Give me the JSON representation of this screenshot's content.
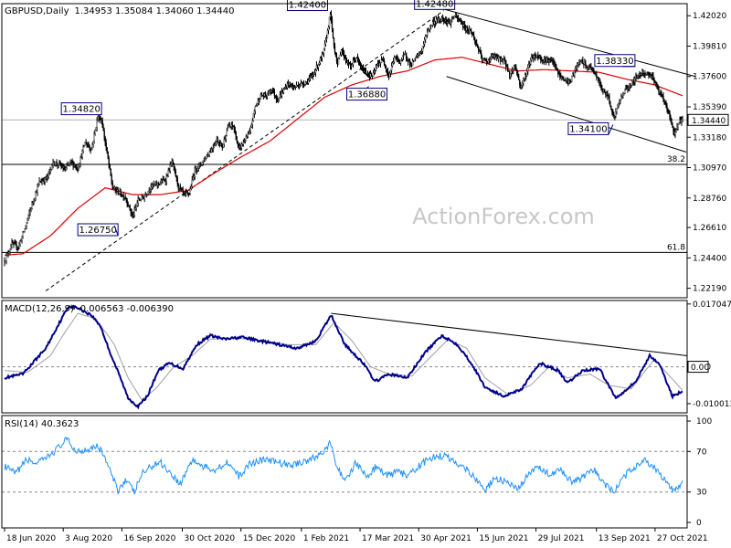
{
  "chart_data": [
    {
      "type": "candlestick",
      "symbol_header": "GBPUSD,Daily",
      "ohlc_header": "1.34953 1.35084 1.34060 1.34440",
      "watermark": "ActionForex.com",
      "ylim": [
        1.215,
        1.429
      ],
      "y_ticks": [
        "1.42020",
        "1.39810",
        "1.37600",
        "1.35390",
        "1.33180",
        "1.30970",
        "1.28760",
        "1.26610",
        "1.24400",
        "1.22190"
      ],
      "current_price": "1.34440",
      "x_ticks": [
        "18 Jun 2020",
        "3 Aug 2020",
        "16 Sep 2020",
        "30 Oct 2020",
        "15 Dec 2020",
        "1 Feb 2021",
        "17 Mar 2021",
        "30 Apr 2021",
        "15 Jun 2021",
        "29 Jul 2021",
        "13 Sep 2021",
        "27 Oct 2021"
      ],
      "price_labels": [
        "1.42400",
        "1.42480",
        "1.34820",
        "1.36880",
        "1.38330",
        "1.34100",
        "1.26750"
      ],
      "fib_labels": [
        "38.2",
        "61.8"
      ],
      "fib_levels": [
        1.312,
        1.248
      ],
      "close_anchors": [
        [
          0,
          1.242
        ],
        [
          8,
          1.254
        ],
        [
          15,
          1.252
        ],
        [
          22,
          1.265
        ],
        [
          30,
          1.283
        ],
        [
          38,
          1.299
        ],
        [
          46,
          1.302
        ],
        [
          53,
          1.313
        ],
        [
          60,
          1.312
        ],
        [
          66,
          1.308
        ],
        [
          72,
          1.314
        ],
        [
          80,
          1.309
        ],
        [
          88,
          1.328
        ],
        [
          95,
          1.323
        ],
        [
          102,
          1.347
        ],
        [
          106,
          1.344
        ],
        [
          112,
          1.32
        ],
        [
          118,
          1.295
        ],
        [
          124,
          1.292
        ],
        [
          132,
          1.288
        ],
        [
          140,
          1.274
        ],
        [
          146,
          1.286
        ],
        [
          152,
          1.288
        ],
        [
          160,
          1.296
        ],
        [
          168,
          1.298
        ],
        [
          176,
          1.301
        ],
        [
          183,
          1.314
        ],
        [
          190,
          1.296
        ],
        [
          196,
          1.29
        ],
        [
          202,
          1.291
        ],
        [
          208,
          1.308
        ],
        [
          214,
          1.312
        ],
        [
          220,
          1.317
        ],
        [
          226,
          1.323
        ],
        [
          232,
          1.33
        ],
        [
          238,
          1.325
        ],
        [
          244,
          1.339
        ],
        [
          250,
          1.34
        ],
        [
          256,
          1.323
        ],
        [
          262,
          1.329
        ],
        [
          268,
          1.335
        ],
        [
          274,
          1.354
        ],
        [
          280,
          1.362
        ],
        [
          286,
          1.362
        ],
        [
          292,
          1.367
        ],
        [
          298,
          1.359
        ],
        [
          304,
          1.365
        ],
        [
          310,
          1.371
        ],
        [
          316,
          1.368
        ],
        [
          322,
          1.37
        ],
        [
          330,
          1.372
        ],
        [
          336,
          1.376
        ],
        [
          342,
          1.384
        ],
        [
          348,
          1.392
        ],
        [
          352,
          1.405
        ],
        [
          356,
          1.422
        ],
        [
          360,
          1.398
        ],
        [
          364,
          1.385
        ],
        [
          368,
          1.396
        ],
        [
          373,
          1.388
        ],
        [
          378,
          1.383
        ],
        [
          384,
          1.39
        ],
        [
          390,
          1.382
        ],
        [
          396,
          1.378
        ],
        [
          402,
          1.376
        ],
        [
          408,
          1.385
        ],
        [
          414,
          1.388
        ],
        [
          420,
          1.376
        ],
        [
          426,
          1.39
        ],
        [
          432,
          1.387
        ],
        [
          438,
          1.392
        ],
        [
          444,
          1.384
        ],
        [
          450,
          1.39
        ],
        [
          456,
          1.395
        ],
        [
          462,
          1.409
        ],
        [
          468,
          1.415
        ],
        [
          474,
          1.417
        ],
        [
          480,
          1.418
        ],
        [
          486,
          1.415
        ],
        [
          492,
          1.42
        ],
        [
          498,
          1.416
        ],
        [
          504,
          1.411
        ],
        [
          510,
          1.409
        ],
        [
          516,
          1.399
        ],
        [
          522,
          1.388
        ],
        [
          528,
          1.387
        ],
        [
          534,
          1.391
        ],
        [
          540,
          1.389
        ],
        [
          546,
          1.388
        ],
        [
          552,
          1.377
        ],
        [
          558,
          1.384
        ],
        [
          564,
          1.368
        ],
        [
          570,
          1.378
        ],
        [
          576,
          1.39
        ],
        [
          582,
          1.391
        ],
        [
          588,
          1.388
        ],
        [
          594,
          1.388
        ],
        [
          600,
          1.386
        ],
        [
          606,
          1.377
        ],
        [
          612,
          1.373
        ],
        [
          618,
          1.372
        ],
        [
          624,
          1.381
        ],
        [
          630,
          1.388
        ],
        [
          636,
          1.383
        ],
        [
          642,
          1.382
        ],
        [
          648,
          1.374
        ],
        [
          654,
          1.366
        ],
        [
          660,
          1.361
        ],
        [
          666,
          1.346
        ],
        [
          672,
          1.358
        ],
        [
          678,
          1.366
        ],
        [
          684,
          1.37
        ],
        [
          690,
          1.375
        ],
        [
          696,
          1.379
        ],
        [
          702,
          1.378
        ],
        [
          708,
          1.376
        ],
        [
          714,
          1.367
        ],
        [
          720,
          1.359
        ],
        [
          726,
          1.349
        ],
        [
          732,
          1.334
        ],
        [
          736,
          1.342
        ],
        [
          741,
          1.3444
        ]
      ],
      "ma_anchors": [
        [
          0,
          1.246
        ],
        [
          20,
          1.247
        ],
        [
          50,
          1.26
        ],
        [
          80,
          1.28
        ],
        [
          110,
          1.295
        ],
        [
          140,
          1.29
        ],
        [
          170,
          1.29
        ],
        [
          200,
          1.293
        ],
        [
          230,
          1.306
        ],
        [
          260,
          1.318
        ],
        [
          290,
          1.329
        ],
        [
          320,
          1.345
        ],
        [
          350,
          1.361
        ],
        [
          380,
          1.37
        ],
        [
          410,
          1.376
        ],
        [
          440,
          1.38
        ],
        [
          470,
          1.388
        ],
        [
          500,
          1.39
        ],
        [
          530,
          1.385
        ],
        [
          560,
          1.38
        ],
        [
          590,
          1.381
        ],
        [
          620,
          1.38
        ],
        [
          650,
          1.379
        ],
        [
          680,
          1.374
        ],
        [
          710,
          1.37
        ],
        [
          741,
          1.362
        ]
      ],
      "trend_lines": [
        {
          "from": [
            480,
            1.425
          ],
          "to": [
            755,
            1.376
          ]
        },
        {
          "from": [
            483,
            1.376
          ],
          "to": [
            745,
            1.321
          ]
        },
        {
          "from": [
            45,
            1.22
          ],
          "to": [
            480,
            1.424
          ]
        }
      ],
      "series": [
        {
          "values": [
            1.424,
            1.4248,
            1.3482,
            1.3688,
            1.3833,
            1.341,
            1.2675
          ]
        }
      ]
    },
    {
      "type": "line",
      "title": "MACD(12,26,9) -0.006563 -0.006390",
      "ylim": [
        -0.0125,
        0.018
      ],
      "y_ticks": [
        "0.017047",
        "0.00",
        "-0.010013"
      ],
      "zero_label": "0.00",
      "macd_anchors": [
        [
          0,
          -0.003
        ],
        [
          20,
          -0.002
        ],
        [
          45,
          0.005
        ],
        [
          60,
          0.012
        ],
        [
          70,
          0.0165
        ],
        [
          80,
          0.016
        ],
        [
          95,
          0.014
        ],
        [
          105,
          0.011
        ],
        [
          115,
          0.004
        ],
        [
          125,
          -0.002
        ],
        [
          135,
          -0.0085
        ],
        [
          146,
          -0.0108
        ],
        [
          156,
          -0.008
        ],
        [
          168,
          -0.001
        ],
        [
          180,
          0.001
        ],
        [
          195,
          -0.0005
        ],
        [
          210,
          0.006
        ],
        [
          225,
          0.0085
        ],
        [
          240,
          0.0075
        ],
        [
          260,
          0.008
        ],
        [
          280,
          0.007
        ],
        [
          300,
          0.006
        ],
        [
          320,
          0.005
        ],
        [
          340,
          0.007
        ],
        [
          357,
          0.014
        ],
        [
          372,
          0.006
        ],
        [
          392,
          0.001
        ],
        [
          405,
          -0.004
        ],
        [
          420,
          -0.002
        ],
        [
          440,
          -0.003
        ],
        [
          460,
          0.004
        ],
        [
          478,
          0.0085
        ],
        [
          495,
          0.006
        ],
        [
          510,
          0.001
        ],
        [
          525,
          -0.0055
        ],
        [
          545,
          -0.008
        ],
        [
          565,
          -0.006
        ],
        [
          585,
          0.001
        ],
        [
          605,
          -0.001
        ],
        [
          615,
          -0.0045
        ],
        [
          632,
          -0.001
        ],
        [
          650,
          -0.0005
        ],
        [
          668,
          -0.0085
        ],
        [
          690,
          -0.004
        ],
        [
          705,
          0.003
        ],
        [
          715,
          0.001
        ],
        [
          730,
          -0.008
        ],
        [
          741,
          -0.0066
        ]
      ],
      "signal_anchors": [
        [
          0,
          -0.001
        ],
        [
          25,
          -0.0015
        ],
        [
          50,
          0.003
        ],
        [
          65,
          0.009
        ],
        [
          80,
          0.0145
        ],
        [
          100,
          0.013
        ],
        [
          120,
          0.006
        ],
        [
          135,
          -0.003
        ],
        [
          150,
          -0.009
        ],
        [
          165,
          -0.006
        ],
        [
          185,
          0.0
        ],
        [
          205,
          0.003
        ],
        [
          225,
          0.0075
        ],
        [
          250,
          0.0078
        ],
        [
          280,
          0.0072
        ],
        [
          310,
          0.006
        ],
        [
          340,
          0.006
        ],
        [
          360,
          0.012
        ],
        [
          380,
          0.007
        ],
        [
          400,
          0.0
        ],
        [
          420,
          -0.002
        ],
        [
          445,
          -0.0025
        ],
        [
          465,
          0.0025
        ],
        [
          485,
          0.0075
        ],
        [
          505,
          0.005
        ],
        [
          525,
          -0.003
        ],
        [
          550,
          -0.0075
        ],
        [
          575,
          -0.005
        ],
        [
          595,
          0.0
        ],
        [
          615,
          -0.003
        ],
        [
          640,
          -0.002
        ],
        [
          660,
          -0.005
        ],
        [
          685,
          -0.006
        ],
        [
          710,
          0.002
        ],
        [
          725,
          -0.002
        ],
        [
          741,
          -0.0064
        ]
      ],
      "trend_lines": [
        {
          "from": [
            357,
            0.0145
          ],
          "to": [
            752,
            0.003
          ]
        }
      ]
    },
    {
      "type": "line",
      "title": "RSI(14) 40.3623",
      "ylim": [
        0,
        100
      ],
      "y_ticks": [
        "100",
        "70",
        "30",
        "0"
      ],
      "levels": [
        70,
        30
      ],
      "rsi_anchors": [
        [
          0,
          55
        ],
        [
          12,
          48
        ],
        [
          24,
          62
        ],
        [
          36,
          58
        ],
        [
          48,
          65
        ],
        [
          60,
          75
        ],
        [
          68,
          82
        ],
        [
          78,
          70
        ],
        [
          90,
          72
        ],
        [
          100,
          76
        ],
        [
          108,
          68
        ],
        [
          118,
          44
        ],
        [
          124,
          32
        ],
        [
          132,
          42
        ],
        [
          142,
          30
        ],
        [
          150,
          48
        ],
        [
          160,
          55
        ],
        [
          170,
          60
        ],
        [
          180,
          50
        ],
        [
          192,
          38
        ],
        [
          205,
          62
        ],
        [
          216,
          55
        ],
        [
          230,
          52
        ],
        [
          244,
          60
        ],
        [
          256,
          45
        ],
        [
          268,
          58
        ],
        [
          282,
          62
        ],
        [
          296,
          60
        ],
        [
          312,
          56
        ],
        [
          326,
          60
        ],
        [
          340,
          64
        ],
        [
          350,
          72
        ],
        [
          356,
          78
        ],
        [
          364,
          52
        ],
        [
          374,
          42
        ],
        [
          384,
          60
        ],
        [
          396,
          44
        ],
        [
          406,
          55
        ],
        [
          418,
          46
        ],
        [
          430,
          50
        ],
        [
          442,
          46
        ],
        [
          456,
          58
        ],
        [
          468,
          64
        ],
        [
          480,
          66
        ],
        [
          492,
          60
        ],
        [
          506,
          52
        ],
        [
          518,
          40
        ],
        [
          526,
          32
        ],
        [
          536,
          44
        ],
        [
          548,
          40
        ],
        [
          560,
          32
        ],
        [
          572,
          46
        ],
        [
          584,
          56
        ],
        [
          596,
          46
        ],
        [
          608,
          52
        ],
        [
          620,
          40
        ],
        [
          632,
          44
        ],
        [
          644,
          52
        ],
        [
          656,
          38
        ],
        [
          666,
          30
        ],
        [
          678,
          46
        ],
        [
          690,
          56
        ],
        [
          700,
          62
        ],
        [
          712,
          52
        ],
        [
          724,
          38
        ],
        [
          732,
          32
        ],
        [
          741,
          40
        ]
      ]
    }
  ]
}
